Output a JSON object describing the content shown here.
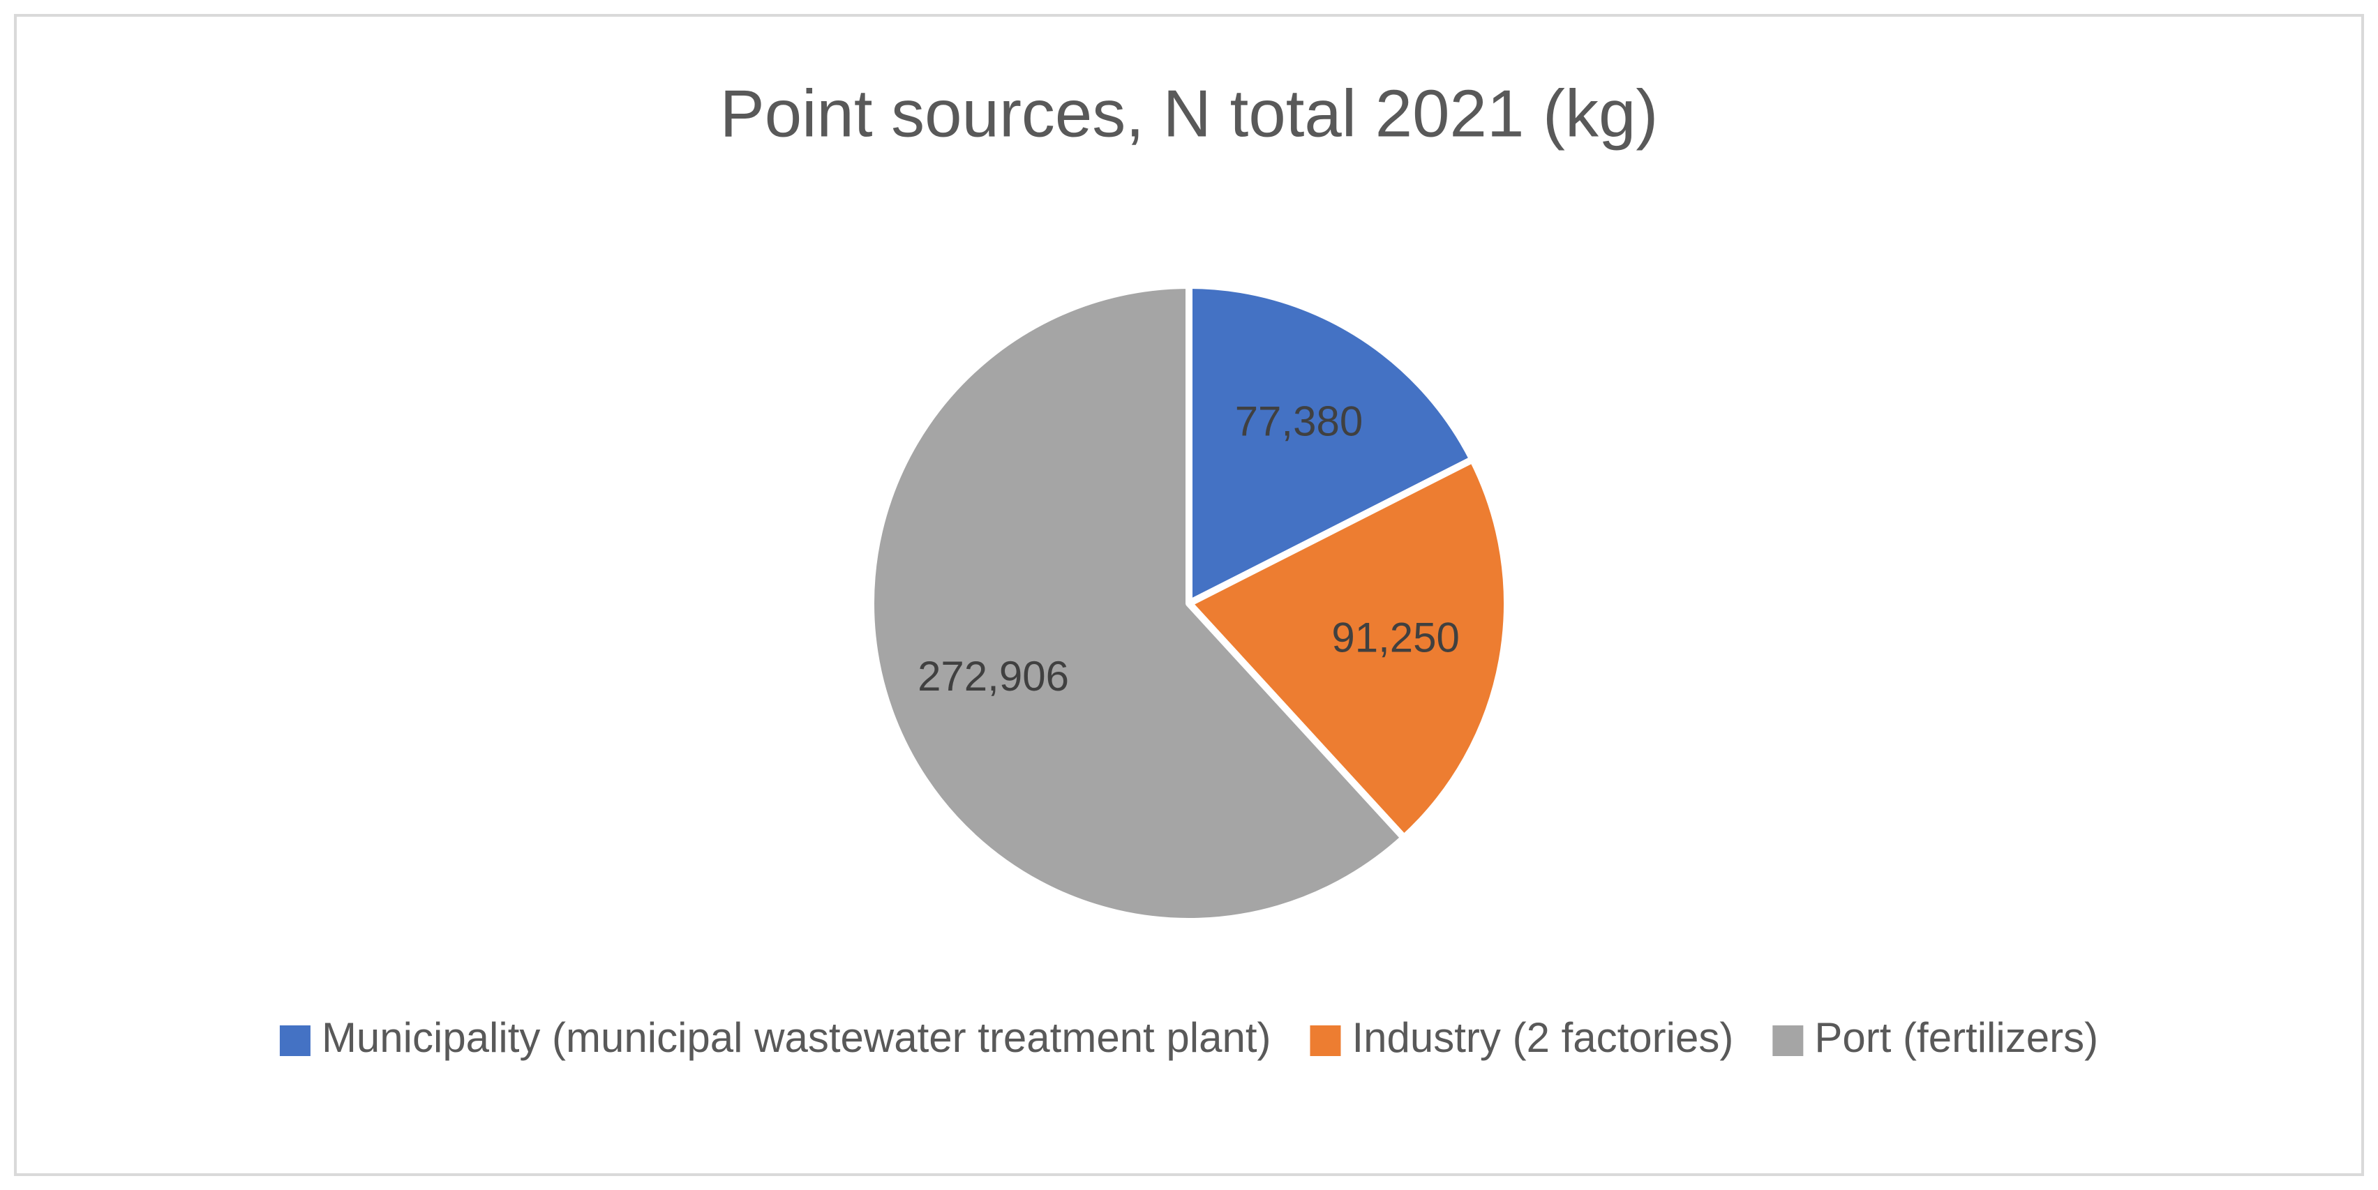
{
  "chart_data": {
    "type": "pie",
    "title": "Point sources, N total 2021 (kg)",
    "categories": [
      "Municipality (municipal wastewater treatment plant)",
      "Industry (2 factories)",
      "Port (fertilizers)"
    ],
    "values": [
      77380,
      91250,
      272906
    ],
    "value_labels": [
      "77,380",
      "91,250",
      "272,906"
    ],
    "colors": [
      "#4472c4",
      "#ed7d31",
      "#a5a5a5"
    ],
    "legend": "bottom"
  }
}
